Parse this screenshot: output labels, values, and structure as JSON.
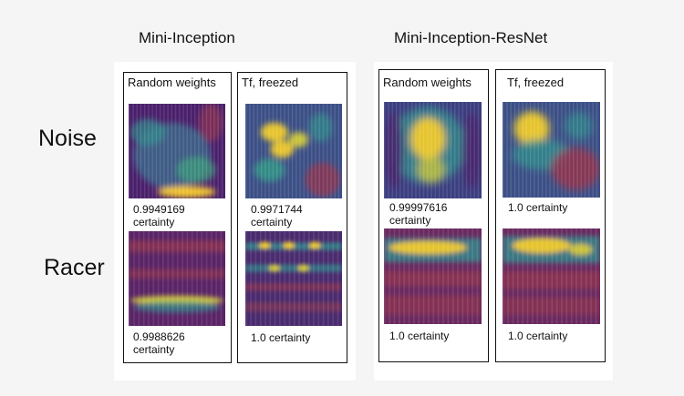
{
  "groups": [
    {
      "title": "Mini-Inception",
      "columns": [
        {
          "header": "Random weights",
          "rows": [
            {
              "certainty": "0.9949169\ncertainty",
              "heatmap": "noise-activation-map-diffuse"
            },
            {
              "certainty": "0.9988626\ncertainty",
              "heatmap": "racer-activation-map-banded"
            }
          ]
        },
        {
          "header": "Tf, freezed",
          "rows": [
            {
              "certainty": "0.9971744\ncertainty",
              "heatmap": "noise-activation-map-blobs"
            },
            {
              "certainty": "1.0 certainty",
              "heatmap": "racer-activation-map-grid"
            }
          ]
        }
      ]
    },
    {
      "title": "Mini-Inception-ResNet",
      "columns": [
        {
          "header": "Random weights",
          "rows": [
            {
              "certainty": "0.99997616\ncertainty",
              "heatmap": "noise-activation-map-central"
            },
            {
              "certainty": "1.0 certainty",
              "heatmap": "racer-activation-map-top-band"
            }
          ]
        },
        {
          "header": "Tf, freezed",
          "rows": [
            {
              "certainty": "1.0 certainty",
              "heatmap": "noise-activation-map-upper"
            },
            {
              "certainty": "1.0 certainty",
              "heatmap": "racer-activation-map-top-band"
            }
          ]
        }
      ]
    }
  ],
  "row_labels": [
    "Noise",
    "Racer"
  ],
  "colors": {
    "map_low": "#4a1f6b",
    "map_mid": "#2f8c8c",
    "map_high": "#f2c52b",
    "map_red": "#8e3550"
  }
}
